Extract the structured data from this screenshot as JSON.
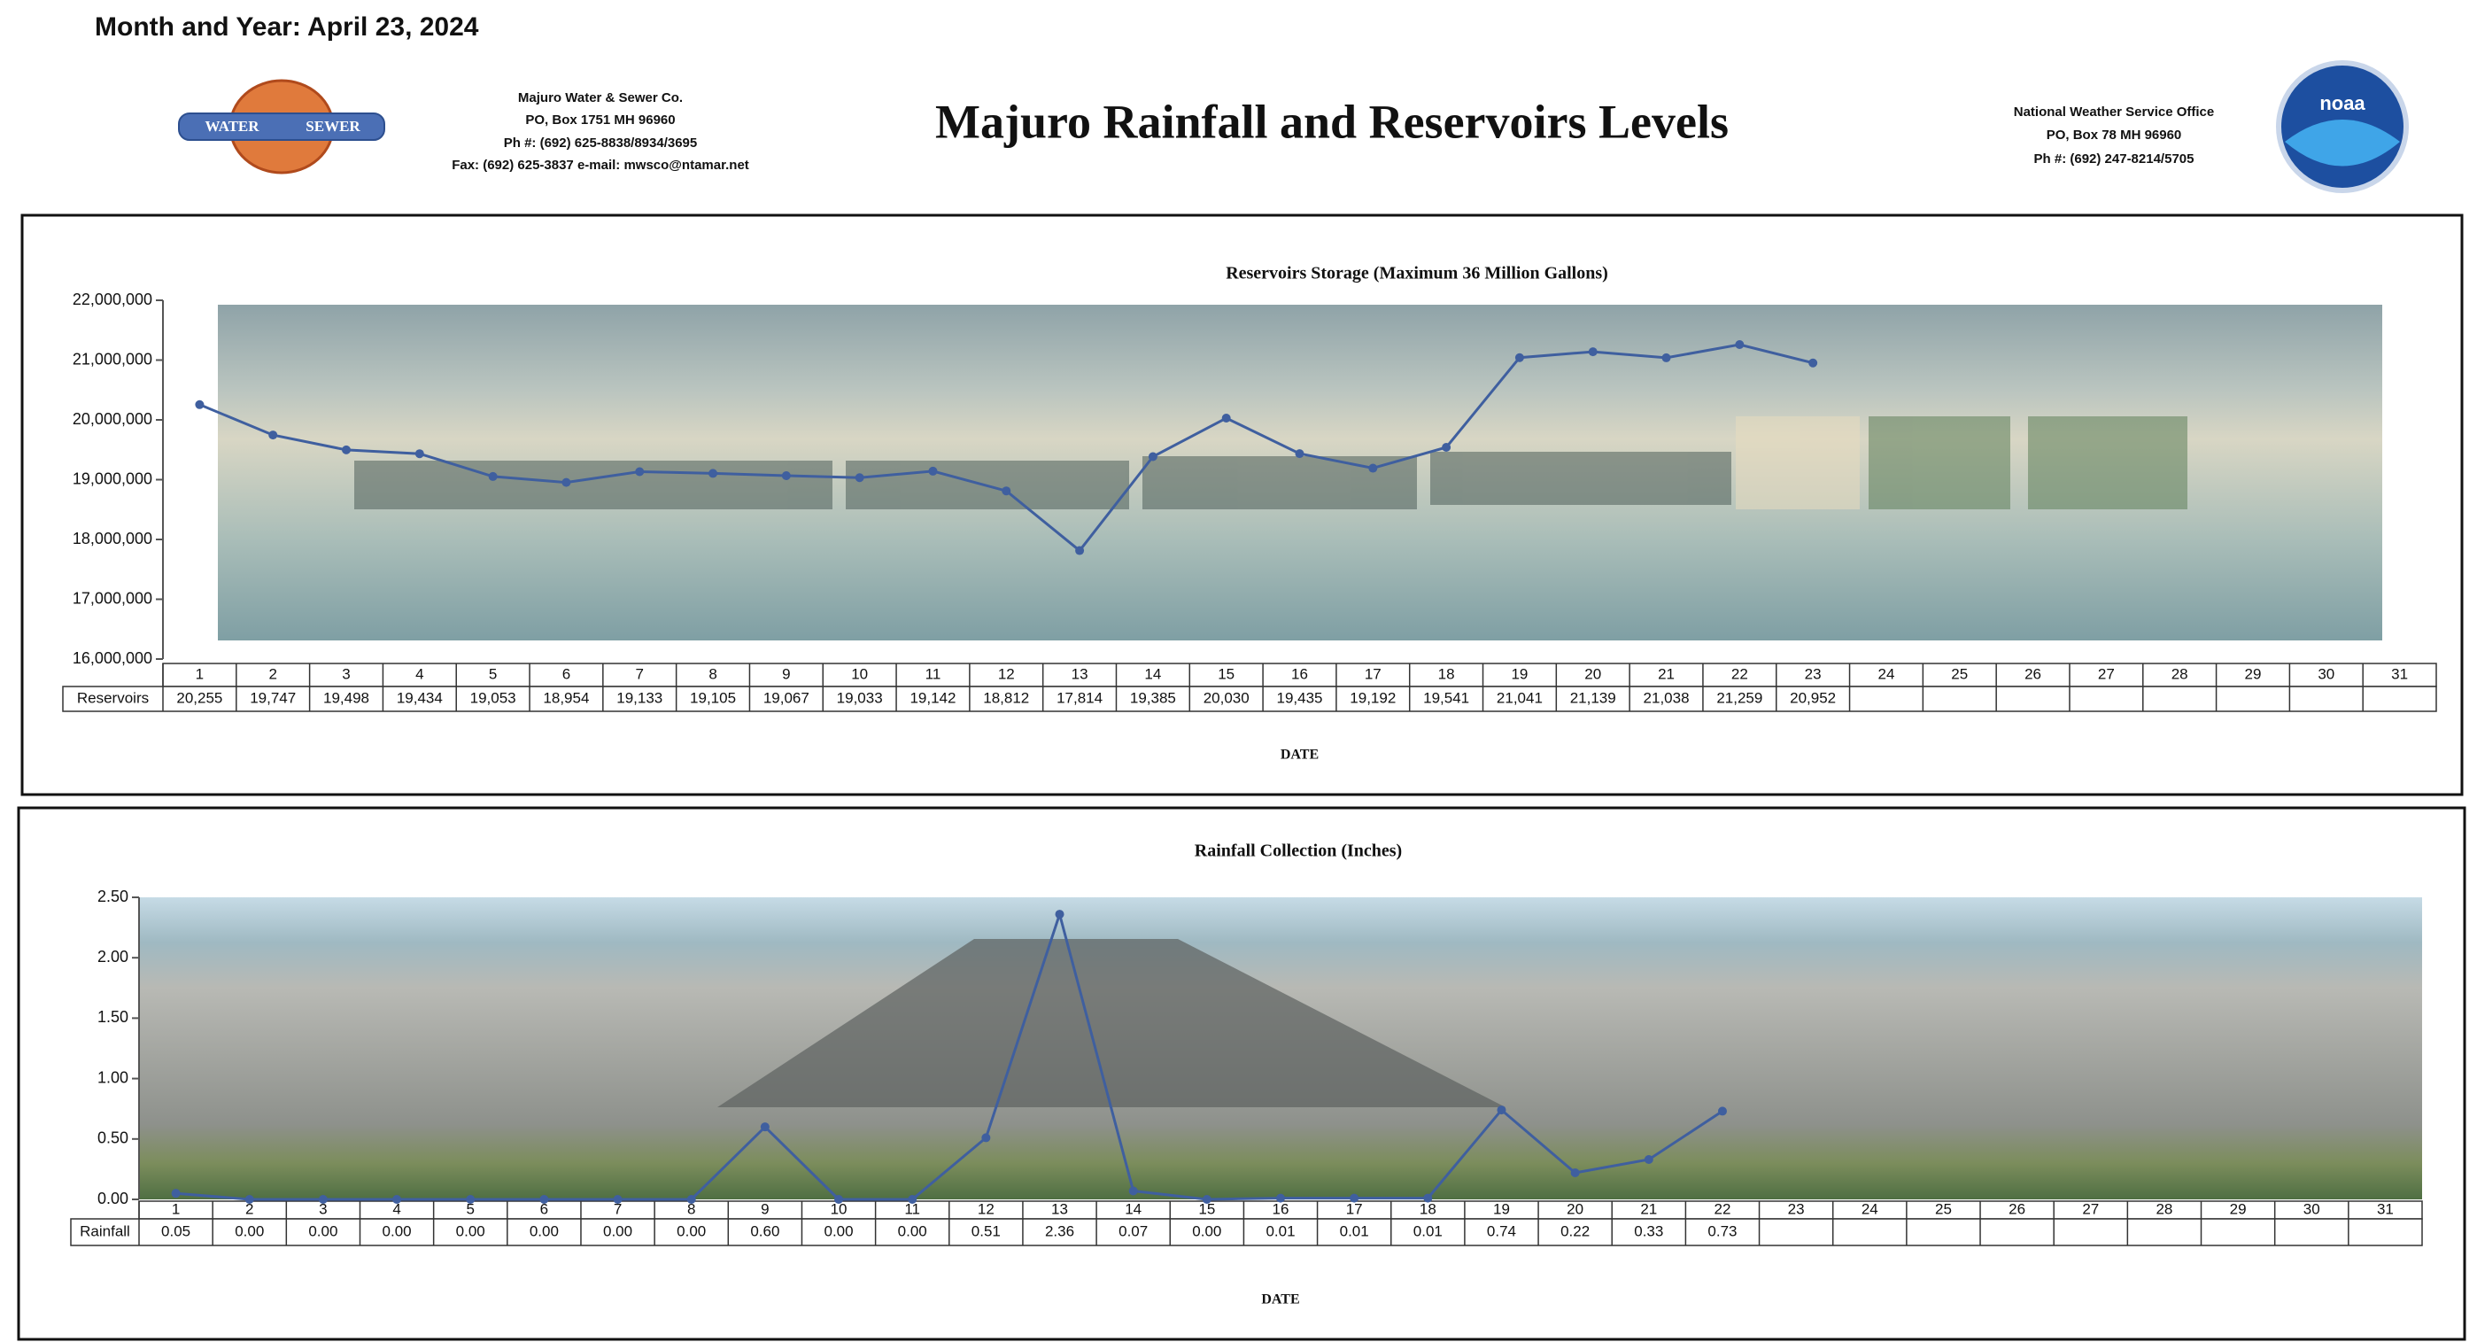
{
  "header": {
    "date_line": "Month and Year: April 23, 2024",
    "title": "Majuro Rainfall and Reservoirs Levels",
    "logo_left": [
      "WATER",
      "SEWER"
    ],
    "left_org": [
      "Majuro Water & Sewer Co.",
      "PO, Box 1751 MH 96960",
      "Ph #: (692) 625-8838/8934/3695",
      "Fax: (692) 625-3837 e-mail: mwsco@ntamar.net"
    ],
    "right_org": [
      "National Weather Service Office",
      "PO, Box 78 MH 96960",
      "Ph #: (692) 247-8214/5705"
    ],
    "logo_right": "noaa"
  },
  "chart_data": [
    {
      "type": "line",
      "title": "Reservoirs Storage (Maximum 36 Million Gallons)",
      "xlabel": "DATE",
      "categories": [
        1,
        2,
        3,
        4,
        5,
        6,
        7,
        8,
        9,
        10,
        11,
        12,
        13,
        14,
        15,
        16,
        17,
        18,
        19,
        20,
        21,
        22,
        23,
        24,
        25,
        26,
        27,
        28,
        29,
        30,
        31
      ],
      "series": [
        {
          "name": "Reservoirs",
          "color": "#3f5f9f",
          "values": [
            20255000,
            19747000,
            19498000,
            19434000,
            19053000,
            18954000,
            19133000,
            19105000,
            19067000,
            19033000,
            19142000,
            18812000,
            17814000,
            19385000,
            20030000,
            19435000,
            19192000,
            19541000,
            21041000,
            21139000,
            21038000,
            21259000,
            20952000,
            null,
            null,
            null,
            null,
            null,
            null,
            null,
            null
          ],
          "value_labels": [
            "20,255",
            "19,747",
            "19,498",
            "19,434",
            "19,053",
            "18,954",
            "19,133",
            "19,105",
            "19,067",
            "19,033",
            "19,142",
            "18,812",
            "17,814",
            "19,385",
            "20,030",
            "19,435",
            "19,192",
            "19,541",
            "21,041",
            "21,139",
            "21,038",
            "21,259",
            "20,952",
            null,
            null,
            null,
            null,
            null,
            null,
            null,
            null
          ]
        }
      ],
      "ylim": [
        16000000,
        22000000
      ],
      "yticks": [
        {
          "value": 16000000,
          "label": "16,000,000"
        },
        {
          "value": 17000000,
          "label": "17,000,000"
        },
        {
          "value": 18000000,
          "label": "18,000,000"
        },
        {
          "value": 19000000,
          "label": "19,000,000"
        },
        {
          "value": 20000000,
          "label": "20,000,000"
        },
        {
          "value": 21000000,
          "label": "21,000,000"
        },
        {
          "value": 22000000,
          "label": "22,000,000"
        }
      ]
    },
    {
      "type": "line",
      "title": "Rainfall Collection (Inches)",
      "xlabel": "DATE",
      "categories": [
        1,
        2,
        3,
        4,
        5,
        6,
        7,
        8,
        9,
        10,
        11,
        12,
        13,
        14,
        15,
        16,
        17,
        18,
        19,
        20,
        21,
        22,
        23,
        24,
        25,
        26,
        27,
        28,
        29,
        30,
        31
      ],
      "series": [
        {
          "name": "Rainfall",
          "color": "#3f5f9f",
          "values": [
            0.05,
            0,
            0,
            0,
            0,
            0,
            0,
            0,
            0.6,
            0,
            0,
            0.51,
            2.36,
            0.07,
            0,
            0.01,
            0.01,
            0.01,
            0.74,
            0.22,
            0.33,
            0.73,
            null,
            null,
            null,
            null,
            null,
            null,
            null,
            null,
            null
          ],
          "value_labels": [
            "0.05",
            "0.00",
            "0.00",
            "0.00",
            "0.00",
            "0.00",
            "0.00",
            "0.00",
            "0.60",
            "0.00",
            "0.00",
            "0.51",
            "2.36",
            "0.07",
            "0.00",
            "0.01",
            "0.01",
            "0.01",
            "0.74",
            "0.22",
            "0.33",
            "0.73",
            null,
            null,
            null,
            null,
            null,
            null,
            null,
            null,
            null
          ]
        }
      ],
      "ylim": [
        0,
        2.5
      ],
      "yticks": [
        {
          "value": 0,
          "label": "0.00"
        },
        {
          "value": 0.5,
          "label": "0.50"
        },
        {
          "value": 1,
          "label": "1.00"
        },
        {
          "value": 1.5,
          "label": "1.50"
        },
        {
          "value": 2,
          "label": "2.00"
        },
        {
          "value": 2.5,
          "label": "2.50"
        }
      ]
    }
  ]
}
